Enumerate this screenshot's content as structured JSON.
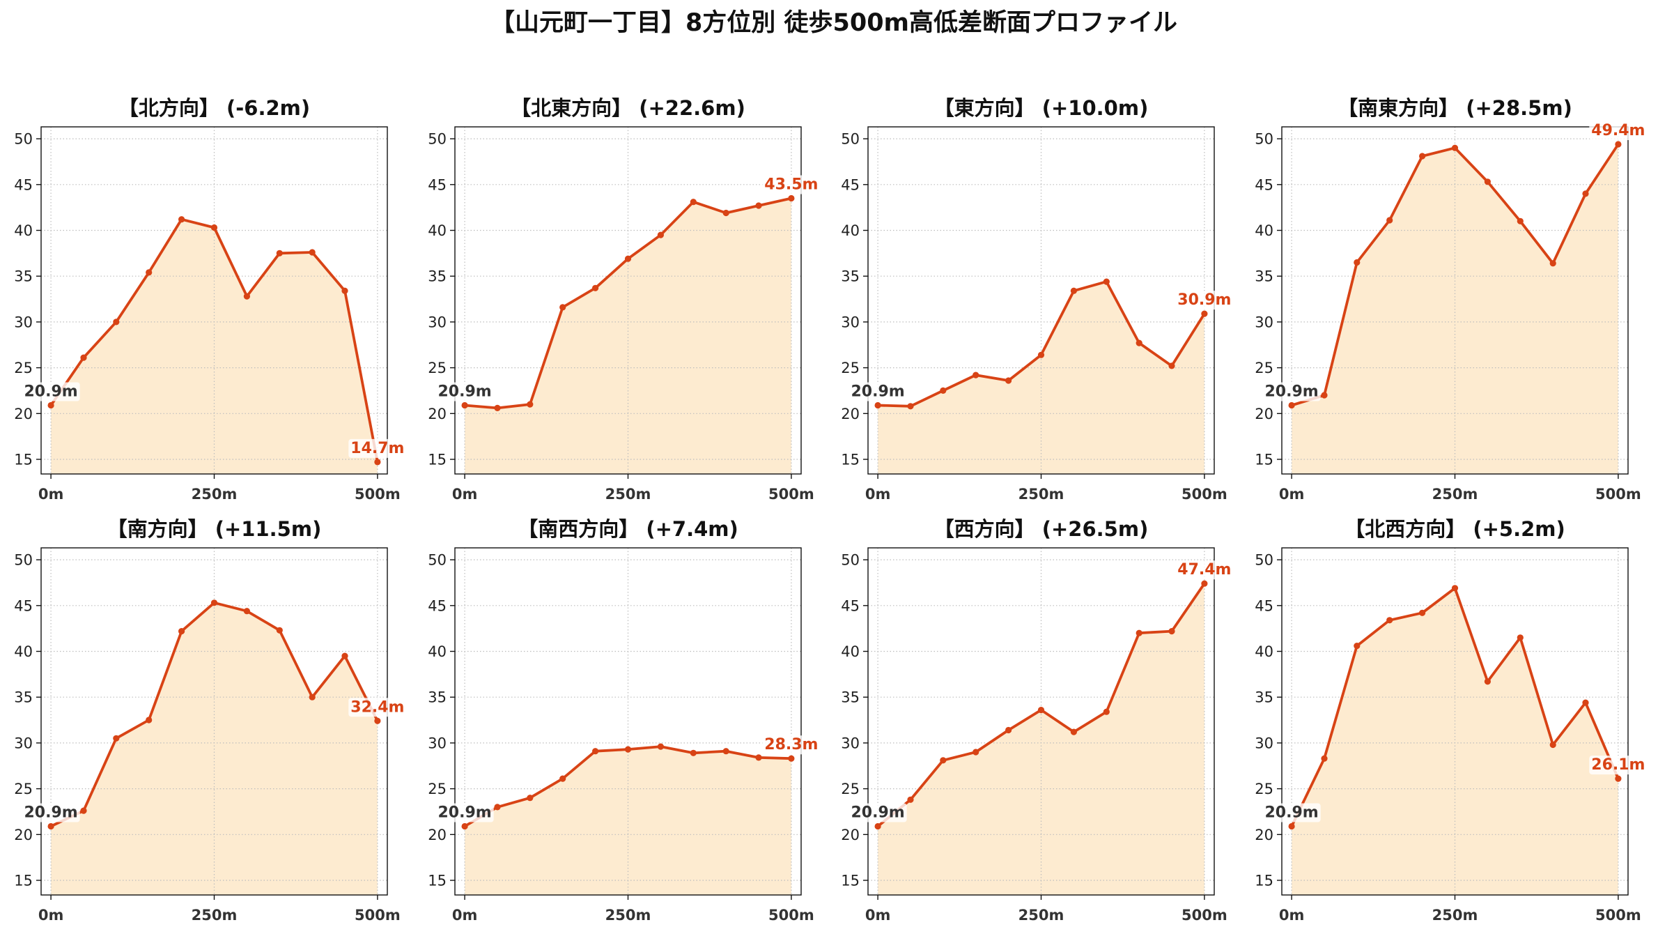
{
  "title": "【山元町一丁目】8方位別 徒歩500m高低差断面プロファイル",
  "colors": {
    "line": "#d84315",
    "fill": "#fdebd0",
    "start_label": "#333333",
    "end_label": "#d84315",
    "grid": "#bdbdbd"
  },
  "chart_data": [
    {
      "type": "area",
      "title": "【北方向】 (-6.2m)",
      "x": [
        0,
        50,
        100,
        150,
        200,
        250,
        300,
        350,
        400,
        450,
        500
      ],
      "y": [
        20.9,
        26.1,
        30.0,
        35.4,
        41.2,
        40.3,
        32.8,
        37.5,
        37.6,
        33.4,
        14.7
      ],
      "xlim": [
        -15,
        515
      ],
      "ylim": [
        13.4,
        51.3
      ],
      "xticks": [
        0,
        250,
        500
      ],
      "xtick_labels": [
        "0m",
        "250m",
        "500m"
      ],
      "yticks": [
        15,
        20,
        25,
        30,
        35,
        40,
        45,
        50
      ],
      "ytick_labels": [
        "15",
        "20",
        "25",
        "30",
        "35",
        "40",
        "45",
        "50"
      ],
      "grid": true,
      "annotations": [
        {
          "x": 0,
          "y": 20.9,
          "text": "20.9m",
          "color": "#333333"
        },
        {
          "x": 500,
          "y": 14.7,
          "text": "14.7m",
          "color": "#d84315"
        }
      ]
    },
    {
      "type": "area",
      "title": "【北東方向】 (+22.6m)",
      "x": [
        0,
        50,
        100,
        150,
        200,
        250,
        300,
        350,
        400,
        450,
        500
      ],
      "y": [
        20.9,
        20.6,
        21.0,
        31.6,
        33.7,
        36.9,
        39.5,
        43.1,
        41.9,
        42.7,
        43.5
      ],
      "xlim": [
        -15,
        515
      ],
      "ylim": [
        13.4,
        51.3
      ],
      "xticks": [
        0,
        250,
        500
      ],
      "xtick_labels": [
        "0m",
        "250m",
        "500m"
      ],
      "yticks": [
        15,
        20,
        25,
        30,
        35,
        40,
        45,
        50
      ],
      "ytick_labels": [
        "15",
        "20",
        "25",
        "30",
        "35",
        "40",
        "45",
        "50"
      ],
      "grid": true,
      "annotations": [
        {
          "x": 0,
          "y": 20.9,
          "text": "20.9m",
          "color": "#333333"
        },
        {
          "x": 500,
          "y": 43.5,
          "text": "43.5m",
          "color": "#d84315"
        }
      ]
    },
    {
      "type": "area",
      "title": "【東方向】 (+10.0m)",
      "x": [
        0,
        50,
        100,
        150,
        200,
        250,
        300,
        350,
        400,
        450,
        500
      ],
      "y": [
        20.9,
        20.8,
        22.5,
        24.2,
        23.6,
        26.4,
        33.4,
        34.4,
        27.7,
        25.2,
        30.9
      ],
      "xlim": [
        -15,
        515
      ],
      "ylim": [
        13.4,
        51.3
      ],
      "xticks": [
        0,
        250,
        500
      ],
      "xtick_labels": [
        "0m",
        "250m",
        "500m"
      ],
      "yticks": [
        15,
        20,
        25,
        30,
        35,
        40,
        45,
        50
      ],
      "ytick_labels": [
        "15",
        "20",
        "25",
        "30",
        "35",
        "40",
        "45",
        "50"
      ],
      "grid": true,
      "annotations": [
        {
          "x": 0,
          "y": 20.9,
          "text": "20.9m",
          "color": "#333333"
        },
        {
          "x": 500,
          "y": 30.9,
          "text": "30.9m",
          "color": "#d84315"
        }
      ]
    },
    {
      "type": "area",
      "title": "【南東方向】 (+28.5m)",
      "x": [
        0,
        50,
        100,
        150,
        200,
        250,
        300,
        350,
        400,
        450,
        500
      ],
      "y": [
        20.9,
        22.0,
        36.5,
        41.1,
        48.1,
        49.0,
        45.3,
        41.0,
        36.4,
        44.0,
        49.4
      ],
      "xlim": [
        -15,
        515
      ],
      "ylim": [
        13.4,
        51.3
      ],
      "xticks": [
        0,
        250,
        500
      ],
      "xtick_labels": [
        "0m",
        "250m",
        "500m"
      ],
      "yticks": [
        15,
        20,
        25,
        30,
        35,
        40,
        45,
        50
      ],
      "ytick_labels": [
        "15",
        "20",
        "25",
        "30",
        "35",
        "40",
        "45",
        "50"
      ],
      "grid": true,
      "annotations": [
        {
          "x": 0,
          "y": 20.9,
          "text": "20.9m",
          "color": "#333333"
        },
        {
          "x": 500,
          "y": 49.4,
          "text": "49.4m",
          "color": "#d84315"
        }
      ]
    },
    {
      "type": "area",
      "title": "【南方向】 (+11.5m)",
      "x": [
        0,
        50,
        100,
        150,
        200,
        250,
        300,
        350,
        400,
        450,
        500
      ],
      "y": [
        20.9,
        22.6,
        30.5,
        32.5,
        42.2,
        45.3,
        44.4,
        42.3,
        35.0,
        39.5,
        32.4
      ],
      "xlim": [
        -15,
        515
      ],
      "ylim": [
        13.4,
        51.3
      ],
      "xticks": [
        0,
        250,
        500
      ],
      "xtick_labels": [
        "0m",
        "250m",
        "500m"
      ],
      "yticks": [
        15,
        20,
        25,
        30,
        35,
        40,
        45,
        50
      ],
      "ytick_labels": [
        "15",
        "20",
        "25",
        "30",
        "35",
        "40",
        "45",
        "50"
      ],
      "grid": true,
      "annotations": [
        {
          "x": 0,
          "y": 20.9,
          "text": "20.9m",
          "color": "#333333"
        },
        {
          "x": 500,
          "y": 32.4,
          "text": "32.4m",
          "color": "#d84315"
        }
      ]
    },
    {
      "type": "area",
      "title": "【南西方向】 (+7.4m)",
      "x": [
        0,
        50,
        100,
        150,
        200,
        250,
        300,
        350,
        400,
        450,
        500
      ],
      "y": [
        20.9,
        23.0,
        24.0,
        26.1,
        29.1,
        29.3,
        29.6,
        28.9,
        29.1,
        28.4,
        28.3
      ],
      "xlim": [
        -15,
        515
      ],
      "ylim": [
        13.4,
        51.3
      ],
      "xticks": [
        0,
        250,
        500
      ],
      "xtick_labels": [
        "0m",
        "250m",
        "500m"
      ],
      "yticks": [
        15,
        20,
        25,
        30,
        35,
        40,
        45,
        50
      ],
      "ytick_labels": [
        "15",
        "20",
        "25",
        "30",
        "35",
        "40",
        "45",
        "50"
      ],
      "grid": true,
      "annotations": [
        {
          "x": 0,
          "y": 20.9,
          "text": "20.9m",
          "color": "#333333"
        },
        {
          "x": 500,
          "y": 28.3,
          "text": "28.3m",
          "color": "#d84315"
        }
      ]
    },
    {
      "type": "area",
      "title": "【西方向】 (+26.5m)",
      "x": [
        0,
        50,
        100,
        150,
        200,
        250,
        300,
        350,
        400,
        450,
        500
      ],
      "y": [
        20.9,
        23.8,
        28.1,
        29.0,
        31.4,
        33.6,
        31.2,
        33.4,
        42.0,
        42.2,
        47.4
      ],
      "xlim": [
        -15,
        515
      ],
      "ylim": [
        13.4,
        51.3
      ],
      "xticks": [
        0,
        250,
        500
      ],
      "xtick_labels": [
        "0m",
        "250m",
        "500m"
      ],
      "yticks": [
        15,
        20,
        25,
        30,
        35,
        40,
        45,
        50
      ],
      "ytick_labels": [
        "15",
        "20",
        "25",
        "30",
        "35",
        "40",
        "45",
        "50"
      ],
      "grid": true,
      "annotations": [
        {
          "x": 0,
          "y": 20.9,
          "text": "20.9m",
          "color": "#333333"
        },
        {
          "x": 500,
          "y": 47.4,
          "text": "47.4m",
          "color": "#d84315"
        }
      ]
    },
    {
      "type": "area",
      "title": "【北西方向】 (+5.2m)",
      "x": [
        0,
        50,
        100,
        150,
        200,
        250,
        300,
        350,
        400,
        450,
        500
      ],
      "y": [
        20.9,
        28.3,
        40.6,
        43.4,
        44.2,
        46.9,
        36.7,
        41.5,
        29.8,
        34.4,
        26.1
      ],
      "xlim": [
        -15,
        515
      ],
      "ylim": [
        13.4,
        51.3
      ],
      "xticks": [
        0,
        250,
        500
      ],
      "xtick_labels": [
        "0m",
        "250m",
        "500m"
      ],
      "yticks": [
        15,
        20,
        25,
        30,
        35,
        40,
        45,
        50
      ],
      "ytick_labels": [
        "15",
        "20",
        "25",
        "30",
        "35",
        "40",
        "45",
        "50"
      ],
      "grid": true,
      "annotations": [
        {
          "x": 0,
          "y": 20.9,
          "text": "20.9m",
          "color": "#333333"
        },
        {
          "x": 500,
          "y": 26.1,
          "text": "26.1m",
          "color": "#d84315"
        }
      ]
    }
  ]
}
